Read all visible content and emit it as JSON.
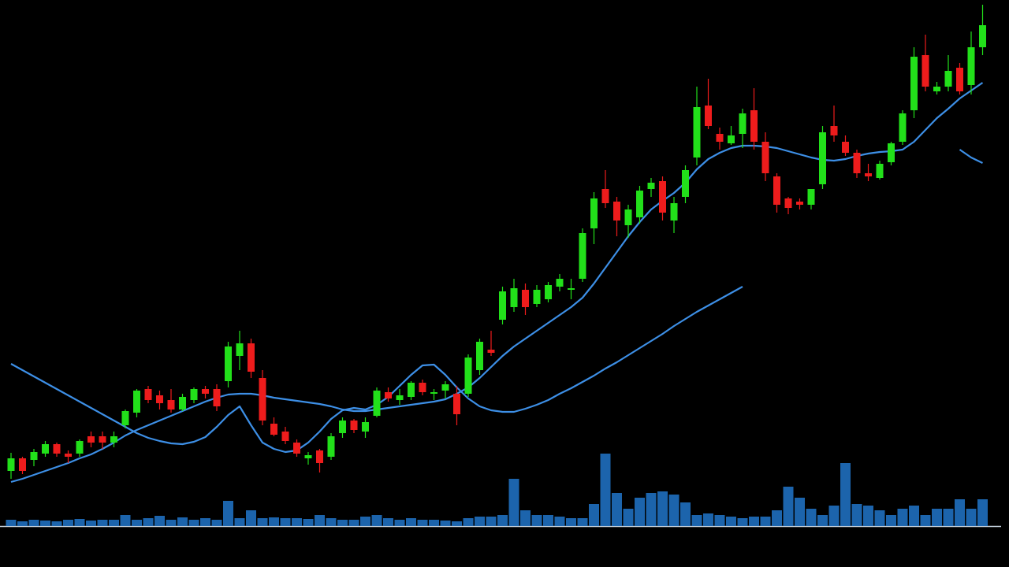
{
  "chart_data": {
    "type": "candlestick",
    "ylim": [
      0,
      720
    ],
    "volume_ylim": [
      0,
      100
    ],
    "up_color": "#22e01a",
    "down_color": "#ee1c1c",
    "volume_color": "#1f6fbf",
    "line_color": "#3d8fe6",
    "ohlc": [
      [
        122,
        145,
        112,
        138
      ],
      [
        138,
        140,
        118,
        122
      ],
      [
        136,
        150,
        128,
        146
      ],
      [
        144,
        160,
        140,
        156
      ],
      [
        156,
        158,
        140,
        144
      ],
      [
        144,
        148,
        132,
        140
      ],
      [
        144,
        162,
        140,
        160
      ],
      [
        166,
        172,
        152,
        158
      ],
      [
        166,
        172,
        150,
        158
      ],
      [
        158,
        172,
        152,
        166
      ],
      [
        180,
        200,
        176,
        198
      ],
      [
        196,
        226,
        190,
        224
      ],
      [
        226,
        230,
        208,
        212
      ],
      [
        218,
        224,
        200,
        208
      ],
      [
        212,
        226,
        196,
        200
      ],
      [
        200,
        220,
        198,
        216
      ],
      [
        212,
        228,
        208,
        226
      ],
      [
        226,
        230,
        214,
        220
      ],
      [
        226,
        232,
        198,
        204
      ],
      [
        236,
        286,
        228,
        280
      ],
      [
        268,
        300,
        250,
        284
      ],
      [
        284,
        290,
        240,
        248
      ],
      [
        240,
        250,
        180,
        186
      ],
      [
        182,
        190,
        166,
        168
      ],
      [
        172,
        178,
        156,
        160
      ],
      [
        158,
        162,
        140,
        144
      ],
      [
        138,
        146,
        130,
        142
      ],
      [
        148,
        150,
        120,
        132
      ],
      [
        140,
        170,
        136,
        166
      ],
      [
        170,
        190,
        164,
        186
      ],
      [
        186,
        188,
        170,
        174
      ],
      [
        172,
        190,
        164,
        184
      ],
      [
        192,
        228,
        190,
        224
      ],
      [
        222,
        228,
        210,
        214
      ],
      [
        212,
        226,
        206,
        218
      ],
      [
        216,
        236,
        212,
        234
      ],
      [
        234,
        238,
        218,
        222
      ],
      [
        220,
        226,
        212,
        222
      ],
      [
        224,
        236,
        214,
        232
      ],
      [
        220,
        230,
        180,
        194
      ],
      [
        220,
        270,
        216,
        266
      ],
      [
        250,
        290,
        244,
        286
      ],
      [
        276,
        300,
        268,
        272
      ],
      [
        314,
        356,
        308,
        350
      ],
      [
        330,
        366,
        324,
        354
      ],
      [
        352,
        360,
        320,
        330
      ],
      [
        334,
        358,
        330,
        352
      ],
      [
        340,
        362,
        336,
        358
      ],
      [
        356,
        372,
        350,
        366
      ],
      [
        352,
        366,
        340,
        354
      ],
      [
        366,
        430,
        362,
        424
      ],
      [
        430,
        476,
        410,
        468
      ],
      [
        480,
        504,
        456,
        462
      ],
      [
        464,
        470,
        420,
        440
      ],
      [
        434,
        460,
        418,
        454
      ],
      [
        444,
        484,
        436,
        478
      ],
      [
        480,
        494,
        470,
        488
      ],
      [
        490,
        496,
        440,
        450
      ],
      [
        440,
        470,
        424,
        462
      ],
      [
        470,
        510,
        462,
        504
      ],
      [
        520,
        610,
        510,
        584
      ],
      [
        586,
        620,
        556,
        560
      ],
      [
        550,
        558,
        530,
        540
      ],
      [
        538,
        560,
        536,
        548
      ],
      [
        550,
        582,
        532,
        576
      ],
      [
        580,
        608,
        530,
        540
      ],
      [
        540,
        552,
        490,
        500
      ],
      [
        496,
        500,
        450,
        460
      ],
      [
        468,
        470,
        448,
        456
      ],
      [
        464,
        468,
        454,
        460
      ],
      [
        460,
        480,
        454,
        480
      ],
      [
        486,
        560,
        480,
        552
      ],
      [
        560,
        586,
        540,
        548
      ],
      [
        540,
        548,
        522,
        526
      ],
      [
        526,
        530,
        494,
        500
      ],
      [
        500,
        512,
        490,
        496
      ],
      [
        494,
        516,
        492,
        512
      ],
      [
        514,
        540,
        510,
        538
      ],
      [
        540,
        580,
        536,
        576
      ],
      [
        580,
        660,
        570,
        648
      ],
      [
        650,
        676,
        604,
        610
      ],
      [
        604,
        616,
        600,
        610
      ],
      [
        610,
        650,
        604,
        630
      ],
      [
        634,
        640,
        600,
        604
      ],
      [
        612,
        680,
        600,
        660
      ],
      [
        660,
        714,
        650,
        688
      ]
    ],
    "volume": [
      8,
      6,
      8,
      7,
      6,
      8,
      9,
      7,
      8,
      8,
      14,
      8,
      10,
      13,
      8,
      11,
      8,
      10,
      8,
      32,
      10,
      20,
      10,
      11,
      10,
      10,
      9,
      14,
      10,
      8,
      8,
      12,
      14,
      10,
      8,
      10,
      8,
      8,
      7,
      6,
      10,
      12,
      12,
      14,
      60,
      20,
      14,
      14,
      12,
      10,
      10,
      28,
      92,
      42,
      22,
      36,
      42,
      44,
      40,
      30,
      14,
      16,
      14,
      12,
      10,
      12,
      12,
      20,
      50,
      36,
      22,
      14,
      26,
      80,
      28,
      26,
      20,
      14,
      22,
      26,
      14,
      22,
      22,
      34,
      22,
      34
    ],
    "lines": [
      {
        "values": [
          258,
          250,
          242,
          234,
          226,
          218,
          210,
          202,
          194,
          186,
          178,
          170,
          164,
          160,
          157,
          156,
          159,
          165,
          178,
          193,
          204,
          180,
          158,
          150,
          146,
          148,
          158,
          172,
          188,
          199,
          202,
          200,
          206,
          216,
          230,
          244,
          256,
          257,
          244,
          228,
          214,
          204,
          199,
          197,
          197,
          201,
          206,
          212,
          220,
          227,
          235,
          243,
          252,
          260,
          269,
          278,
          287,
          296,
          306,
          315,
          324,
          332,
          340,
          348,
          356,
          null,
          null,
          null,
          null,
          null,
          null,
          null,
          null,
          null,
          null,
          null,
          null,
          null,
          null,
          null,
          null,
          null,
          null,
          null,
          null,
          null
        ]
      },
      {
        "values": [
          108,
          112,
          117,
          122,
          127,
          132,
          138,
          143,
          150,
          158,
          167,
          174,
          180,
          186,
          192,
          198,
          204,
          210,
          215,
          219,
          220,
          220,
          218,
          215,
          213,
          211,
          209,
          207,
          204,
          200,
          198,
          198,
          200,
          202,
          204,
          206,
          208,
          210,
          213,
          220,
          228,
          240,
          254,
          268,
          280,
          290,
          300,
          310,
          320,
          330,
          342,
          360,
          380,
          400,
          420,
          438,
          454,
          465,
          475,
          488,
          505,
          518,
          526,
          532,
          535,
          535,
          534,
          532,
          528,
          524,
          520,
          517,
          516,
          518,
          522,
          525,
          527,
          528,
          530,
          540,
          555,
          570,
          582,
          595,
          605,
          615
        ]
      },
      {
        "values": [
          null,
          null,
          null,
          null,
          null,
          null,
          null,
          null,
          null,
          null,
          null,
          null,
          null,
          null,
          null,
          null,
          null,
          null,
          null,
          null,
          null,
          null,
          null,
          null,
          null,
          null,
          null,
          null,
          null,
          null,
          null,
          null,
          null,
          null,
          null,
          null,
          null,
          null,
          null,
          null,
          null,
          null,
          null,
          null,
          null,
          null,
          null,
          null,
          null,
          null,
          null,
          null,
          null,
          null,
          null,
          null,
          null,
          null,
          null,
          null,
          null,
          null,
          null,
          null,
          null,
          null,
          null,
          null,
          null,
          null,
          null,
          null,
          null,
          null,
          null,
          null,
          null,
          null,
          null,
          null,
          null,
          null,
          null,
          530,
          520,
          513
        ]
      }
    ]
  }
}
